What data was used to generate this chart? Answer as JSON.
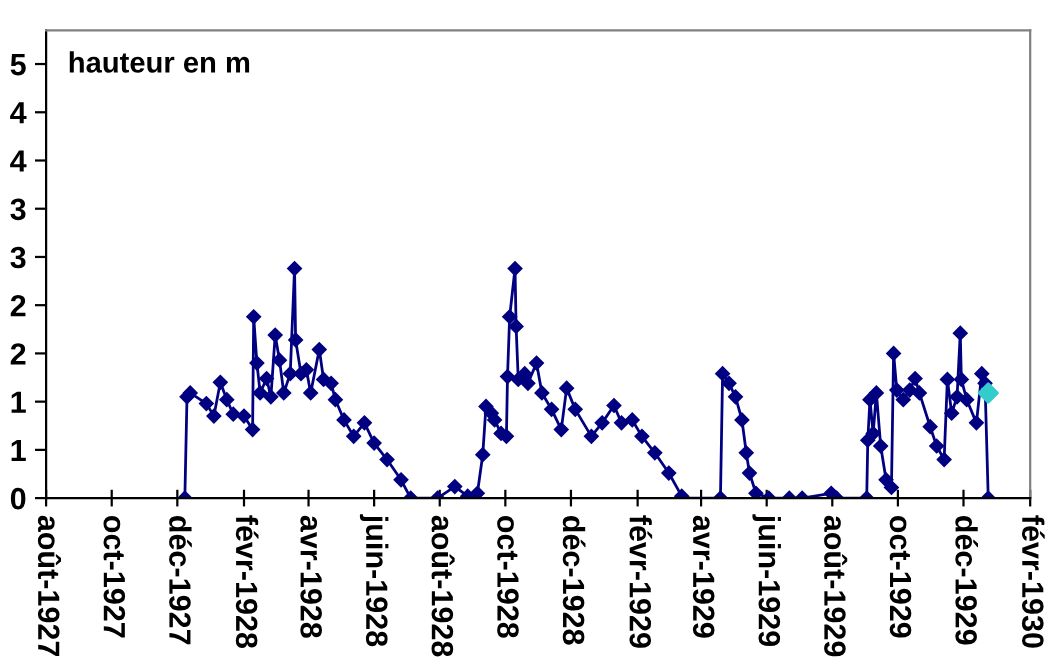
{
  "chart_data": {
    "type": "line",
    "ylabel": "hauteur en m",
    "marker": "diamond",
    "line_style": "solid",
    "grid": false,
    "legend": false,
    "ylim": [
      0,
      4.85
    ],
    "yticks": [
      0,
      {
        "value": 0.5,
        "label": "1"
      },
      1,
      {
        "value": 1.5,
        "label": "2"
      },
      2,
      {
        "value": 2.5,
        "label": "3"
      },
      3,
      {
        "value": 3.5,
        "label": "4"
      },
      4,
      {
        "value": 4.5,
        "label": "5"
      }
    ],
    "xlim": [
      "1927-08-01",
      "1930-02-01"
    ],
    "xticks": [
      {
        "value": "1927-08-01",
        "label": "août-1927"
      },
      {
        "value": "1927-10-01",
        "label": "oct-1927"
      },
      {
        "value": "1927-12-01",
        "label": "déc-1927"
      },
      {
        "value": "1928-02-01",
        "label": "févr-1928"
      },
      {
        "value": "1928-04-01",
        "label": "avr-1928"
      },
      {
        "value": "1928-06-01",
        "label": "juin-1928"
      },
      {
        "value": "1928-08-01",
        "label": "août-1928"
      },
      {
        "value": "1928-10-01",
        "label": "oct-1928"
      },
      {
        "value": "1928-12-01",
        "label": "déc-1928"
      },
      {
        "value": "1929-02-01",
        "label": "févr-1929"
      },
      {
        "value": "1929-04-01",
        "label": "avr-1929"
      },
      {
        "value": "1929-06-01",
        "label": "juin-1929"
      },
      {
        "value": "1929-08-01",
        "label": "août-1929"
      },
      {
        "value": "1929-10-01",
        "label": "oct-1929"
      },
      {
        "value": "1929-12-01",
        "label": "déc-1929"
      },
      {
        "value": "1930-02-01",
        "label": "févr-1930"
      }
    ],
    "series": [
      {
        "color": "#000080",
        "x": [
          "1927-12-08",
          "1927-12-10",
          "1927-12-13",
          "1927-12-28",
          "1928-01-04",
          "1928-01-10",
          "1928-01-16",
          "1928-01-22",
          "1928-02-01",
          "1928-02-09",
          "1928-02-10",
          "1928-02-13",
          "1928-02-16",
          "1928-02-22",
          "1928-02-26",
          "1928-03-01",
          "1928-03-05",
          "1928-03-09",
          "1928-03-15",
          "1928-03-19",
          "1928-03-20",
          "1928-03-25",
          "1928-03-30",
          "1928-04-03",
          "1928-04-11",
          "1928-04-15",
          "1928-04-22",
          "1928-04-26",
          "1928-05-04",
          "1928-05-13",
          "1928-05-23",
          "1928-06-01",
          "1928-06-13",
          "1928-06-26",
          "1928-07-05",
          "1928-07-30",
          "1928-08-15",
          "1928-08-27",
          "1928-09-05",
          "1928-09-10",
          "1928-09-13",
          "1928-09-18",
          "1928-09-21",
          "1928-09-27",
          "1928-10-02",
          "1928-10-03",
          "1928-10-05",
          "1928-10-10",
          "1928-10-11",
          "1928-10-13",
          "1928-10-19",
          "1928-10-22",
          "1928-10-30",
          "1928-11-04",
          "1928-11-13",
          "1928-11-22",
          "1928-11-27",
          "1928-12-05",
          "1928-12-20",
          "1928-12-30",
          "1929-01-10",
          "1929-01-17",
          "1929-01-27",
          "1929-02-05",
          "1929-02-17",
          "1929-03-02",
          "1929-03-14",
          "1929-03-15",
          "1929-04-19",
          "1929-04-21",
          "1929-04-27",
          "1929-05-03",
          "1929-05-09",
          "1929-05-13",
          "1929-05-16",
          "1929-05-22",
          "1929-06-03",
          "1929-06-22",
          "1929-07-04",
          "1929-07-31",
          "1929-08-05",
          "1929-09-02",
          "1929-09-03",
          "1929-09-05",
          "1929-09-08",
          "1929-09-11",
          "1929-09-15",
          "1929-09-20",
          "1929-09-25",
          "1929-09-27",
          "1929-09-30",
          "1929-10-06",
          "1929-10-12",
          "1929-10-17",
          "1929-10-21",
          "1929-10-31",
          "1929-11-06",
          "1929-11-13",
          "1929-11-16",
          "1929-11-20",
          "1929-11-25",
          "1929-11-28",
          "1929-11-29",
          "1929-12-04",
          "1929-12-13",
          "1929-12-18",
          "1929-12-21",
          "1929-12-24"
        ],
        "values": [
          0,
          1.05,
          1.09,
          0.98,
          0.85,
          1.2,
          1.02,
          0.87,
          0.85,
          0.71,
          1.88,
          1.4,
          1.09,
          1.24,
          1.05,
          1.69,
          1.43,
          1.09,
          1.29,
          2.38,
          1.64,
          1.29,
          1.33,
          1.09,
          1.54,
          1.23,
          1.19,
          1.02,
          0.81,
          0.64,
          0.78,
          0.57,
          0.4,
          0.19,
          0,
          0,
          0.12,
          0.02,
          0.05,
          0.45,
          0.95,
          0.88,
          0.81,
          0.67,
          0.64,
          1.26,
          1.88,
          2.38,
          1.78,
          1.23,
          1.29,
          1.19,
          1.4,
          1.09,
          0.92,
          0.71,
          1.14,
          0.92,
          0.64,
          0.78,
          0.96,
          0.78,
          0.81,
          0.64,
          0.47,
          0.26,
          0.02,
          0,
          0,
          1.29,
          1.19,
          1.05,
          0.81,
          0.47,
          0.26,
          0.05,
          0,
          0,
          0,
          0.05,
          0,
          0,
          0.6,
          1.02,
          0.67,
          1.09,
          0.54,
          0.19,
          0.11,
          1.5,
          1.12,
          1.02,
          1.12,
          1.24,
          1.09,
          0.74,
          0.54,
          0.4,
          1.23,
          0.88,
          1.05,
          1.71,
          1.23,
          1.02,
          0.78,
          1.29,
          1.19,
          0
        ]
      },
      {
        "type": "scatter",
        "color": "#33cccc",
        "x": [
          "1929-12-24"
        ],
        "values": [
          1.09
        ]
      }
    ]
  }
}
